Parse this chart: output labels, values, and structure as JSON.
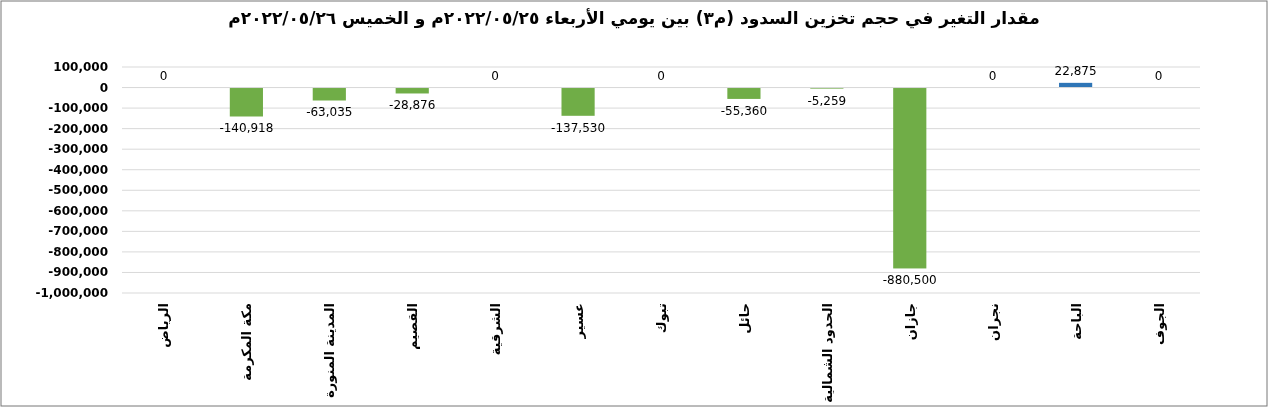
{
  "chart_data": {
    "type": "bar",
    "title": "مقدار التغير في حجم تخزين السدود (م٣) بين يومي الأربعاء ٢٠٢٢/٠٥/٢٥م  و الخميس ٢٠٢٢/٠٥/٢٦م",
    "categories": [
      "الرياض",
      "مكة المكرمة",
      "المدينة المنورة",
      "القصيم",
      "الشرقية",
      "عسير",
      "تبوك",
      "حائل",
      "الحدود الشمالية",
      "جازان",
      "نجران",
      "الباحة",
      "الجوف"
    ],
    "values": [
      0,
      -140918,
      -63035,
      -28876,
      0,
      -137530,
      0,
      -55360,
      -5259,
      -880500,
      0,
      22875,
      0
    ],
    "value_labels": [
      "0",
      "-140,918",
      "-63,035",
      "-28,876",
      "0",
      "-137,530",
      "0",
      "-55,360",
      "-5,259",
      "-880,500",
      "0",
      "22,875",
      "0"
    ],
    "colors": [
      "#70ad47",
      "#70ad47",
      "#70ad47",
      "#70ad47",
      "#70ad47",
      "#70ad47",
      "#70ad47",
      "#70ad47",
      "#70ad47",
      "#70ad47",
      "#70ad47",
      "#2e75b6",
      "#70ad47"
    ],
    "ylim": [
      -1000000,
      100000
    ],
    "yticks": [
      {
        "value": 100000,
        "label": "100,000"
      },
      {
        "value": 0,
        "label": "0"
      },
      {
        "value": -100000,
        "label": "-100,000"
      },
      {
        "value": -200000,
        "label": "-200,000"
      },
      {
        "value": -300000,
        "label": "-300,000"
      },
      {
        "value": -400000,
        "label": "-400,000"
      },
      {
        "value": -500000,
        "label": "-500,000"
      },
      {
        "value": -600000,
        "label": "-600,000"
      },
      {
        "value": -700000,
        "label": "-700,000"
      },
      {
        "value": -800000,
        "label": "-800,000"
      },
      {
        "value": -900000,
        "label": "-900,000"
      },
      {
        "value": -1000000,
        "label": "-1,000,000"
      }
    ],
    "grid": "y"
  }
}
